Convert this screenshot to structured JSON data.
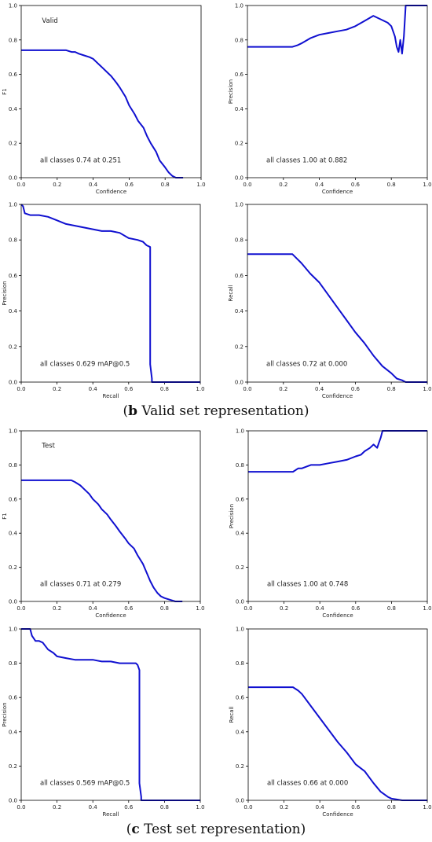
{
  "captions": [
    {
      "label": "b",
      "text": " Valid set representation"
    },
    {
      "label": "c",
      "text": " Test set representation"
    }
  ],
  "chart_data": [
    {
      "type": "line",
      "panel": "valid-f1",
      "tag": "Valid",
      "xlabel": "Confidence",
      "ylabel": "F1",
      "xlim": [
        0,
        1
      ],
      "ylim": [
        0,
        1
      ],
      "xticks": [
        "0.0",
        "0.2",
        "0.4",
        "0.6",
        "0.8",
        "1.0"
      ],
      "yticks": [
        "0.0",
        "0.2",
        "0.4",
        "0.6",
        "0.8",
        "1.0"
      ],
      "annotation": "all classes 0.74 at 0.251",
      "color": "#1010d0",
      "x": [
        0,
        0.05,
        0.1,
        0.15,
        0.2,
        0.25,
        0.28,
        0.3,
        0.32,
        0.35,
        0.38,
        0.4,
        0.42,
        0.45,
        0.48,
        0.5,
        0.53,
        0.55,
        0.58,
        0.6,
        0.63,
        0.65,
        0.68,
        0.7,
        0.72,
        0.75,
        0.77,
        0.8,
        0.82,
        0.84,
        0.86,
        0.88,
        0.9
      ],
      "y": [
        0.74,
        0.74,
        0.74,
        0.74,
        0.74,
        0.74,
        0.73,
        0.73,
        0.72,
        0.71,
        0.7,
        0.69,
        0.67,
        0.64,
        0.61,
        0.59,
        0.55,
        0.52,
        0.47,
        0.42,
        0.37,
        0.33,
        0.29,
        0.24,
        0.2,
        0.15,
        0.1,
        0.06,
        0.03,
        0.01,
        0,
        0,
        0
      ]
    },
    {
      "type": "line",
      "panel": "valid-precision-confidence",
      "xlabel": "Confidence",
      "ylabel": "Precision",
      "xlim": [
        0,
        1
      ],
      "ylim": [
        0,
        1
      ],
      "xticks": [
        "0.0",
        "0.2",
        "0.4",
        "0.6",
        "0.8",
        "1.0"
      ],
      "yticks": [
        "0.0",
        "0.2",
        "0.4",
        "0.6",
        "0.8",
        "1.0"
      ],
      "annotation": "all classes 1.00 at 0.882",
      "color": "#1010d0",
      "x": [
        0,
        0.1,
        0.2,
        0.25,
        0.28,
        0.3,
        0.35,
        0.4,
        0.45,
        0.5,
        0.55,
        0.6,
        0.65,
        0.7,
        0.74,
        0.78,
        0.8,
        0.82,
        0.83,
        0.84,
        0.85,
        0.86,
        0.87,
        0.88,
        0.9,
        1.0
      ],
      "y": [
        0.76,
        0.76,
        0.76,
        0.76,
        0.77,
        0.78,
        0.81,
        0.83,
        0.84,
        0.85,
        0.86,
        0.88,
        0.91,
        0.94,
        0.92,
        0.9,
        0.88,
        0.82,
        0.76,
        0.73,
        0.8,
        0.72,
        0.82,
        1.0,
        1.0,
        1.0
      ]
    },
    {
      "type": "line",
      "panel": "valid-precision-recall",
      "xlabel": "Recall",
      "ylabel": "Precision",
      "xlim": [
        0,
        1
      ],
      "ylim": [
        0,
        1
      ],
      "xticks": [
        "0.0",
        "0.2",
        "0.4",
        "0.6",
        "0.8",
        "1.0"
      ],
      "yticks": [
        "0.0",
        "0.2",
        "0.4",
        "0.6",
        "0.8",
        "1.0"
      ],
      "annotation": "all classes 0.629 mAP@0.5",
      "color": "#1010d0",
      "x": [
        0,
        0.01,
        0.02,
        0.05,
        0.1,
        0.15,
        0.2,
        0.25,
        0.3,
        0.35,
        0.4,
        0.45,
        0.5,
        0.55,
        0.6,
        0.65,
        0.68,
        0.7,
        0.72,
        0.72,
        0.73,
        0.73,
        0.8,
        0.9,
        1.0
      ],
      "y": [
        1.0,
        0.99,
        0.95,
        0.94,
        0.94,
        0.93,
        0.91,
        0.89,
        0.88,
        0.87,
        0.86,
        0.85,
        0.85,
        0.84,
        0.81,
        0.8,
        0.79,
        0.77,
        0.76,
        0.1,
        0.02,
        0,
        0,
        0,
        0
      ]
    },
    {
      "type": "line",
      "panel": "valid-recall-confidence",
      "xlabel": "Confidence",
      "ylabel": "Recall",
      "xlim": [
        0,
        1
      ],
      "ylim": [
        0,
        1
      ],
      "xticks": [
        "0.0",
        "0.2",
        "0.4",
        "0.6",
        "0.8",
        "1.0"
      ],
      "yticks": [
        "0.0",
        "0.2",
        "0.4",
        "0.6",
        "0.8",
        "1.0"
      ],
      "annotation": "all classes 0.72 at 0.000",
      "color": "#1010d0",
      "x": [
        0,
        0.1,
        0.2,
        0.25,
        0.28,
        0.3,
        0.35,
        0.4,
        0.45,
        0.5,
        0.55,
        0.6,
        0.65,
        0.7,
        0.75,
        0.8,
        0.83,
        0.86,
        0.88,
        0.9,
        1.0
      ],
      "y": [
        0.72,
        0.72,
        0.72,
        0.72,
        0.69,
        0.67,
        0.61,
        0.56,
        0.49,
        0.42,
        0.35,
        0.28,
        0.22,
        0.15,
        0.09,
        0.05,
        0.02,
        0.01,
        0,
        0,
        0
      ]
    },
    {
      "type": "line",
      "panel": "test-f1",
      "tag": "Test",
      "xlabel": "Confidence",
      "ylabel": "F1",
      "xlim": [
        0,
        1
      ],
      "ylim": [
        0,
        1
      ],
      "xticks": [
        "0.0",
        "0.2",
        "0.4",
        "0.6",
        "0.8",
        "1.0"
      ],
      "yticks": [
        "0.0",
        "0.2",
        "0.4",
        "0.6",
        "0.8",
        "1.0"
      ],
      "annotation": "all classes 0.71 at 0.279",
      "color": "#1010d0",
      "x": [
        0,
        0.05,
        0.1,
        0.15,
        0.2,
        0.25,
        0.28,
        0.3,
        0.33,
        0.35,
        0.38,
        0.4,
        0.43,
        0.45,
        0.48,
        0.5,
        0.53,
        0.55,
        0.58,
        0.6,
        0.63,
        0.65,
        0.68,
        0.7,
        0.72,
        0.74,
        0.76,
        0.78,
        0.8,
        0.83,
        0.86,
        0.9
      ],
      "y": [
        0.71,
        0.71,
        0.71,
        0.71,
        0.71,
        0.71,
        0.71,
        0.7,
        0.68,
        0.66,
        0.63,
        0.6,
        0.57,
        0.54,
        0.51,
        0.48,
        0.44,
        0.41,
        0.37,
        0.34,
        0.31,
        0.27,
        0.22,
        0.17,
        0.12,
        0.08,
        0.05,
        0.03,
        0.02,
        0.01,
        0,
        0
      ]
    },
    {
      "type": "line",
      "panel": "test-precision-confidence",
      "xlabel": "Confidence",
      "ylabel": "Precision",
      "xlim": [
        0,
        1
      ],
      "ylim": [
        0,
        1
      ],
      "xticks": [
        "0.0",
        "0.2",
        "0.4",
        "0.6",
        "0.8",
        "1.0"
      ],
      "yticks": [
        "0.0",
        "0.2",
        "0.4",
        "0.6",
        "0.8",
        "1.0"
      ],
      "annotation": "all classes 1.00 at 0.748",
      "color": "#1010d0",
      "x": [
        0,
        0.1,
        0.2,
        0.25,
        0.28,
        0.3,
        0.35,
        0.4,
        0.45,
        0.5,
        0.55,
        0.6,
        0.63,
        0.65,
        0.68,
        0.7,
        0.72,
        0.73,
        0.74,
        0.75,
        0.8,
        0.9,
        1.0
      ],
      "y": [
        0.76,
        0.76,
        0.76,
        0.76,
        0.78,
        0.78,
        0.8,
        0.8,
        0.81,
        0.82,
        0.83,
        0.85,
        0.86,
        0.88,
        0.9,
        0.92,
        0.9,
        0.93,
        0.96,
        1.0,
        1.0,
        1.0,
        1.0
      ]
    },
    {
      "type": "line",
      "panel": "test-precision-recall",
      "xlabel": "Recall",
      "ylabel": "Precision",
      "xlim": [
        0,
        1
      ],
      "ylim": [
        0,
        1
      ],
      "xticks": [
        "0.0",
        "0.2",
        "0.4",
        "0.6",
        "0.8",
        "1.0"
      ],
      "yticks": [
        "0.0",
        "0.2",
        "0.4",
        "0.6",
        "0.8",
        "1.0"
      ],
      "annotation": "all classes 0.569 mAP@0.5",
      "color": "#1010d0",
      "x": [
        0,
        0.05,
        0.06,
        0.08,
        0.1,
        0.12,
        0.15,
        0.18,
        0.2,
        0.25,
        0.3,
        0.35,
        0.4,
        0.45,
        0.5,
        0.55,
        0.6,
        0.64,
        0.65,
        0.66,
        0.66,
        0.67,
        0.67,
        0.8,
        0.9,
        1.0
      ],
      "y": [
        1.0,
        1.0,
        0.96,
        0.93,
        0.93,
        0.92,
        0.88,
        0.86,
        0.84,
        0.83,
        0.82,
        0.82,
        0.82,
        0.81,
        0.81,
        0.8,
        0.8,
        0.8,
        0.79,
        0.76,
        0.1,
        0.02,
        0,
        0,
        0,
        0
      ]
    },
    {
      "type": "line",
      "panel": "test-recall-confidence",
      "xlabel": "Confidence",
      "ylabel": "Recall",
      "xlim": [
        0,
        1
      ],
      "ylim": [
        0,
        1
      ],
      "xticks": [
        "0.0",
        "0.2",
        "0.4",
        "0.6",
        "0.8",
        "1.0"
      ],
      "yticks": [
        "0.0",
        "0.2",
        "0.4",
        "0.6",
        "0.8",
        "1.0"
      ],
      "annotation": "all classes 0.66 at 0.000",
      "color": "#1010d0",
      "x": [
        0,
        0.1,
        0.2,
        0.25,
        0.28,
        0.3,
        0.35,
        0.4,
        0.45,
        0.5,
        0.55,
        0.6,
        0.65,
        0.7,
        0.74,
        0.78,
        0.8,
        0.83,
        0.86,
        0.9,
        1.0
      ],
      "y": [
        0.66,
        0.66,
        0.66,
        0.66,
        0.64,
        0.62,
        0.55,
        0.48,
        0.41,
        0.34,
        0.28,
        0.21,
        0.17,
        0.1,
        0.05,
        0.02,
        0.01,
        0.005,
        0,
        0,
        0
      ]
    }
  ]
}
